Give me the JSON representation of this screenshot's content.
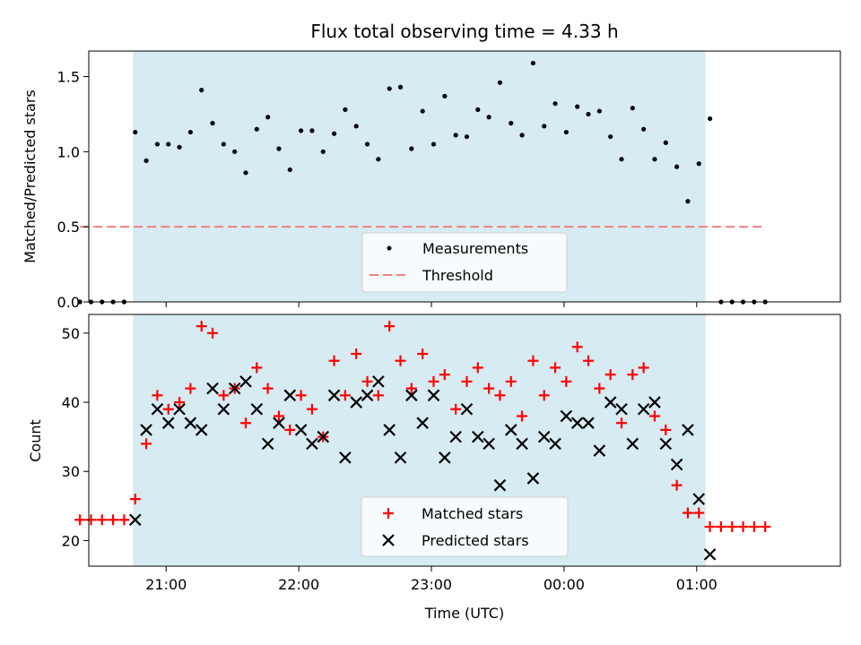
{
  "colors": {
    "shade": "#add8e6",
    "measurement": "#000000",
    "threshold": "#f08080",
    "matched": "#ff0000",
    "predicted": "#000000"
  },
  "chart_data": [
    {
      "type": "scatter",
      "title": "Flux total observing time = 4.33 h",
      "xlabel": "",
      "ylabel": "Matched/Predicted stars",
      "ylim": [
        0,
        1.67
      ],
      "yticks": [
        0.0,
        0.5,
        1.0,
        1.5
      ],
      "ytick_labels": [
        "0.0",
        "0.5",
        "1.0",
        "1.5"
      ],
      "xlim_minutes": [
        -215,
        125
      ],
      "xticks_minutes": [
        -180,
        -120,
        -60,
        0,
        60
      ],
      "x_time_units": "minutes relative to 00:00 UTC",
      "shaded_span_minutes": [
        -195,
        64
      ],
      "legend": {
        "position": "lower-center",
        "entries": [
          "Measurements",
          "Threshold"
        ]
      },
      "threshold": {
        "name": "Threshold",
        "value": 0.5,
        "x_range_minutes": [
          -219,
          90
        ]
      },
      "series": [
        {
          "name": "Measurements",
          "marker": "dot",
          "x_minutes": [
            -219,
            -214,
            -209,
            -204,
            -199,
            -194,
            -189,
            -184,
            -179,
            -174,
            -169,
            -164,
            -159,
            -154,
            -149,
            -144,
            -139,
            -134,
            -129,
            -124,
            -119,
            -114,
            -109,
            -104,
            -99,
            -94,
            -89,
            -84,
            -79,
            -74,
            -69,
            -64,
            -59,
            -54,
            -49,
            -44,
            -39,
            -34,
            -29,
            -24,
            -19,
            -14,
            -9,
            -4,
            1,
            6,
            11,
            16,
            21,
            26,
            31,
            36,
            41,
            46,
            51,
            56,
            61,
            66,
            71,
            76,
            81,
            86,
            91
          ],
          "y": [
            0,
            0,
            0,
            0,
            0,
            1.13,
            0.94,
            1.05,
            1.05,
            1.03,
            1.13,
            1.41,
            1.19,
            1.05,
            1.0,
            0.86,
            1.15,
            1.23,
            1.02,
            0.88,
            1.14,
            1.14,
            1.0,
            1.12,
            1.28,
            1.17,
            1.05,
            0.95,
            1.42,
            1.43,
            1.02,
            1.27,
            1.05,
            1.37,
            1.11,
            1.1,
            1.28,
            1.23,
            1.46,
            1.19,
            1.11,
            1.59,
            1.17,
            1.32,
            1.13,
            1.3,
            1.25,
            1.27,
            1.1,
            0.95,
            1.29,
            1.15,
            0.95,
            1.06,
            0.9,
            0.67,
            0.92,
            1.22,
            0,
            0,
            0,
            0,
            0
          ]
        }
      ]
    },
    {
      "type": "scatter",
      "title": "",
      "xlabel": "Time (UTC)",
      "ylabel": "Count",
      "ylim": [
        16.3,
        52.7
      ],
      "yticks": [
        20,
        30,
        40,
        50
      ],
      "ytick_labels": [
        "20",
        "30",
        "40",
        "50"
      ],
      "xlim_minutes": [
        -215,
        125
      ],
      "xticks_minutes": [
        -180,
        -120,
        -60,
        0,
        60
      ],
      "xtick_labels": [
        "21:00",
        "22:00",
        "23:00",
        "00:00",
        "01:00"
      ],
      "shaded_span_minutes": [
        -195,
        64
      ],
      "legend": {
        "position": "lower-center",
        "entries": [
          "Matched stars",
          "Predicted stars"
        ]
      },
      "series": [
        {
          "name": "Matched stars",
          "marker": "plus",
          "x_minutes": [
            -219,
            -214,
            -209,
            -204,
            -199,
            -194,
            -189,
            -184,
            -179,
            -174,
            -169,
            -164,
            -159,
            -154,
            -149,
            -144,
            -139,
            -134,
            -129,
            -124,
            -119,
            -114,
            -109,
            -104,
            -99,
            -94,
            -89,
            -84,
            -79,
            -74,
            -69,
            -64,
            -59,
            -54,
            -49,
            -44,
            -39,
            -34,
            -29,
            -24,
            -19,
            -14,
            -9,
            -4,
            1,
            6,
            11,
            16,
            21,
            26,
            31,
            36,
            41,
            46,
            51,
            56,
            61,
            66,
            71,
            76,
            81,
            86,
            91
          ],
          "y": [
            23,
            23,
            23,
            23,
            23,
            26,
            34,
            41,
            39,
            40,
            42,
            51,
            50,
            41,
            42,
            37,
            45,
            42,
            38,
            36,
            41,
            39,
            35,
            46,
            41,
            47,
            43,
            41,
            51,
            46,
            42,
            47,
            43,
            44,
            39,
            43,
            45,
            42,
            41,
            43,
            38,
            46,
            41,
            45,
            43,
            48,
            46,
            42,
            44,
            37,
            44,
            45,
            38,
            36,
            28,
            24,
            24,
            22,
            22,
            22,
            22,
            22,
            22
          ]
        },
        {
          "name": "Predicted stars",
          "marker": "x",
          "x_minutes": [
            -194,
            -189,
            -184,
            -179,
            -174,
            -169,
            -164,
            -159,
            -154,
            -149,
            -144,
            -139,
            -134,
            -129,
            -124,
            -119,
            -114,
            -109,
            -104,
            -99,
            -94,
            -89,
            -84,
            -79,
            -74,
            -69,
            -64,
            -59,
            -54,
            -49,
            -44,
            -39,
            -34,
            -29,
            -24,
            -19,
            -14,
            -9,
            -4,
            1,
            6,
            11,
            16,
            21,
            26,
            31,
            36,
            41,
            46,
            51,
            56,
            61,
            66
          ],
          "y": [
            23,
            36,
            39,
            37,
            39,
            37,
            36,
            42,
            39,
            42,
            43,
            39,
            34,
            37,
            41,
            36,
            34,
            35,
            41,
            32,
            40,
            41,
            43,
            36,
            32,
            41,
            37,
            41,
            32,
            35,
            39,
            35,
            34,
            28,
            36,
            34,
            29,
            35,
            34,
            38,
            37,
            37,
            33,
            40,
            39,
            34,
            39,
            40,
            34,
            31,
            36,
            26,
            18
          ]
        }
      ]
    }
  ]
}
